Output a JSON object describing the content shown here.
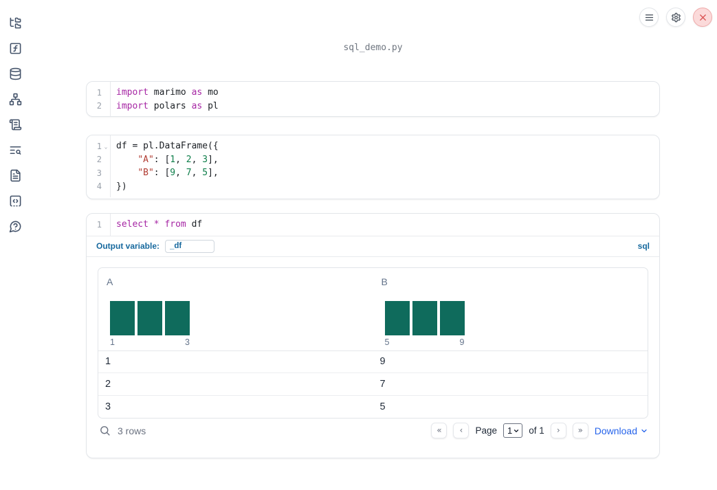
{
  "app": {
    "filename": "sql_demo.py",
    "top_controls": [
      {
        "icon": "menu-icon"
      },
      {
        "icon": "settings-gear-icon"
      },
      {
        "icon": "shutdown-close-icon"
      }
    ]
  },
  "sidebar": {
    "items": [
      {
        "icon": "file-tree-icon"
      },
      {
        "icon": "function-square-icon"
      },
      {
        "icon": "database-icon"
      },
      {
        "icon": "dependency-graph-icon"
      },
      {
        "icon": "scroll-text-icon"
      },
      {
        "icon": "text-search-icon"
      },
      {
        "icon": "file-text-icon"
      },
      {
        "icon": "code-square-icon"
      },
      {
        "icon": "help-bubble-icon"
      }
    ]
  },
  "cells": [
    {
      "id": "imports",
      "lines": [
        {
          "n": "1",
          "fold": false,
          "tokens": [
            [
              "kw",
              "import"
            ],
            [
              "pl",
              " marimo "
            ],
            [
              "kw",
              "as"
            ],
            [
              "pl",
              " mo"
            ]
          ]
        },
        {
          "n": "2",
          "fold": false,
          "tokens": [
            [
              "kw",
              "import"
            ],
            [
              "pl",
              " polars "
            ],
            [
              "kw",
              "as"
            ],
            [
              "pl",
              " pl"
            ]
          ]
        }
      ]
    },
    {
      "id": "dataframe",
      "lines": [
        {
          "n": "1",
          "fold": true,
          "tokens": [
            [
              "pl",
              "df = pl.DataFrame({"
            ]
          ]
        },
        {
          "n": "2",
          "fold": false,
          "tokens": [
            [
              "pl",
              "    "
            ],
            [
              "str",
              "\"A\""
            ],
            [
              "pl",
              ": ["
            ],
            [
              "num",
              "1"
            ],
            [
              "pl",
              ", "
            ],
            [
              "num",
              "2"
            ],
            [
              "pl",
              ", "
            ],
            [
              "num",
              "3"
            ],
            [
              "pl",
              "],"
            ]
          ]
        },
        {
          "n": "3",
          "fold": false,
          "tokens": [
            [
              "pl",
              "    "
            ],
            [
              "str",
              "\"B\""
            ],
            [
              "pl",
              ": ["
            ],
            [
              "num",
              "9"
            ],
            [
              "pl",
              ", "
            ],
            [
              "num",
              "7"
            ],
            [
              "pl",
              ", "
            ],
            [
              "num",
              "5"
            ],
            [
              "pl",
              "],"
            ]
          ]
        },
        {
          "n": "4",
          "fold": false,
          "tokens": [
            [
              "pl",
              "})"
            ]
          ]
        }
      ]
    },
    {
      "id": "sql",
      "lines": [
        {
          "n": "1",
          "fold": false,
          "tokens": [
            [
              "kw",
              "select"
            ],
            [
              "pl",
              " "
            ],
            [
              "kw",
              "*"
            ],
            [
              "pl",
              " "
            ],
            [
              "kw",
              "from"
            ],
            [
              "pl",
              " df"
            ]
          ]
        }
      ]
    }
  ],
  "sql": {
    "output_variable_label": "Output variable:",
    "output_variable_value": "_df",
    "dialect_label": "sql"
  },
  "table": {
    "columns": [
      {
        "name": "A",
        "hist": {
          "values": [
            1,
            1,
            1
          ],
          "tick_left": "1",
          "tick_right": "3"
        }
      },
      {
        "name": "B",
        "hist": {
          "values": [
            1,
            1,
            1
          ],
          "tick_left": "5",
          "tick_right": "9"
        }
      }
    ],
    "rows": [
      [
        "1",
        "9"
      ],
      [
        "2",
        "7"
      ],
      [
        "3",
        "5"
      ]
    ],
    "footer": {
      "row_count": "3 rows",
      "first_glyph": "«",
      "prev_glyph": "‹",
      "next_glyph": "›",
      "last_glyph": "»",
      "page_label": "Page",
      "page_value": "1",
      "of_label": "of 1",
      "download_label": "Download"
    }
  },
  "colors": {
    "bar_teal": "#0f6b5c",
    "keyword_purple": "#a626a4",
    "string_red": "#b03b31",
    "number_green": "#0e7e4a",
    "link_blue": "#2563eb",
    "sql_label_blue": "#17699e",
    "close_button_bg": "#fbdada",
    "close_button_icon": "#d94f4f",
    "border_gray": "#e2e5e9"
  }
}
